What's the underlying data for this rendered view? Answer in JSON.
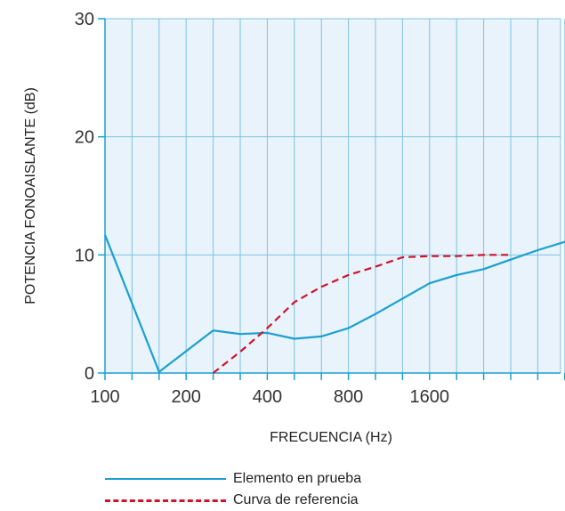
{
  "chart_data": {
    "type": "line",
    "title": "",
    "xlabel": "FRECUENCIA (Hz)",
    "ylabel": "POTENCIA FONOAISLANTE (dB)",
    "ylim": [
      0,
      30
    ],
    "yticks": [
      "0",
      "10",
      "20",
      "30"
    ],
    "x_positions": [
      "100",
      "125",
      "160",
      "200",
      "250",
      "315",
      "400",
      "500",
      "630",
      "800",
      "1000",
      "1250",
      "1600",
      "2000",
      "2500",
      "3150",
      "4000",
      "5000"
    ],
    "xticks": [
      {
        "label": "100",
        "at": "100"
      },
      {
        "label": "200",
        "at": "200"
      },
      {
        "label": "400",
        "at": "400"
      },
      {
        "label": "800",
        "at": "800"
      },
      {
        "label": "1600",
        "at": "1600"
      }
    ],
    "grid": true,
    "series": [
      {
        "name": "Elemento en prueba",
        "style": "solid",
        "color": "#1aa0d0",
        "x": [
          "100",
          "160",
          "250",
          "315",
          "400",
          "500",
          "630",
          "800",
          "1000",
          "1250",
          "1600",
          "2000",
          "2500",
          "3150",
          "4000",
          "5000"
        ],
        "y": [
          11.7,
          0.1,
          3.6,
          3.3,
          3.4,
          2.9,
          3.1,
          3.8,
          5.0,
          6.3,
          7.6,
          8.3,
          8.8,
          9.6,
          10.4,
          11.1
        ]
      },
      {
        "name": "Curva de referencia",
        "style": "dashed",
        "color": "#d0132b",
        "x": [
          "250",
          "315",
          "400",
          "500",
          "630",
          "800",
          "1000",
          "1250",
          "1600",
          "2000",
          "2500",
          "3150"
        ],
        "y": [
          0,
          1.8,
          3.8,
          6.0,
          7.3,
          8.3,
          9.0,
          9.8,
          9.9,
          9.9,
          10.0,
          10.0
        ]
      }
    ]
  }
}
